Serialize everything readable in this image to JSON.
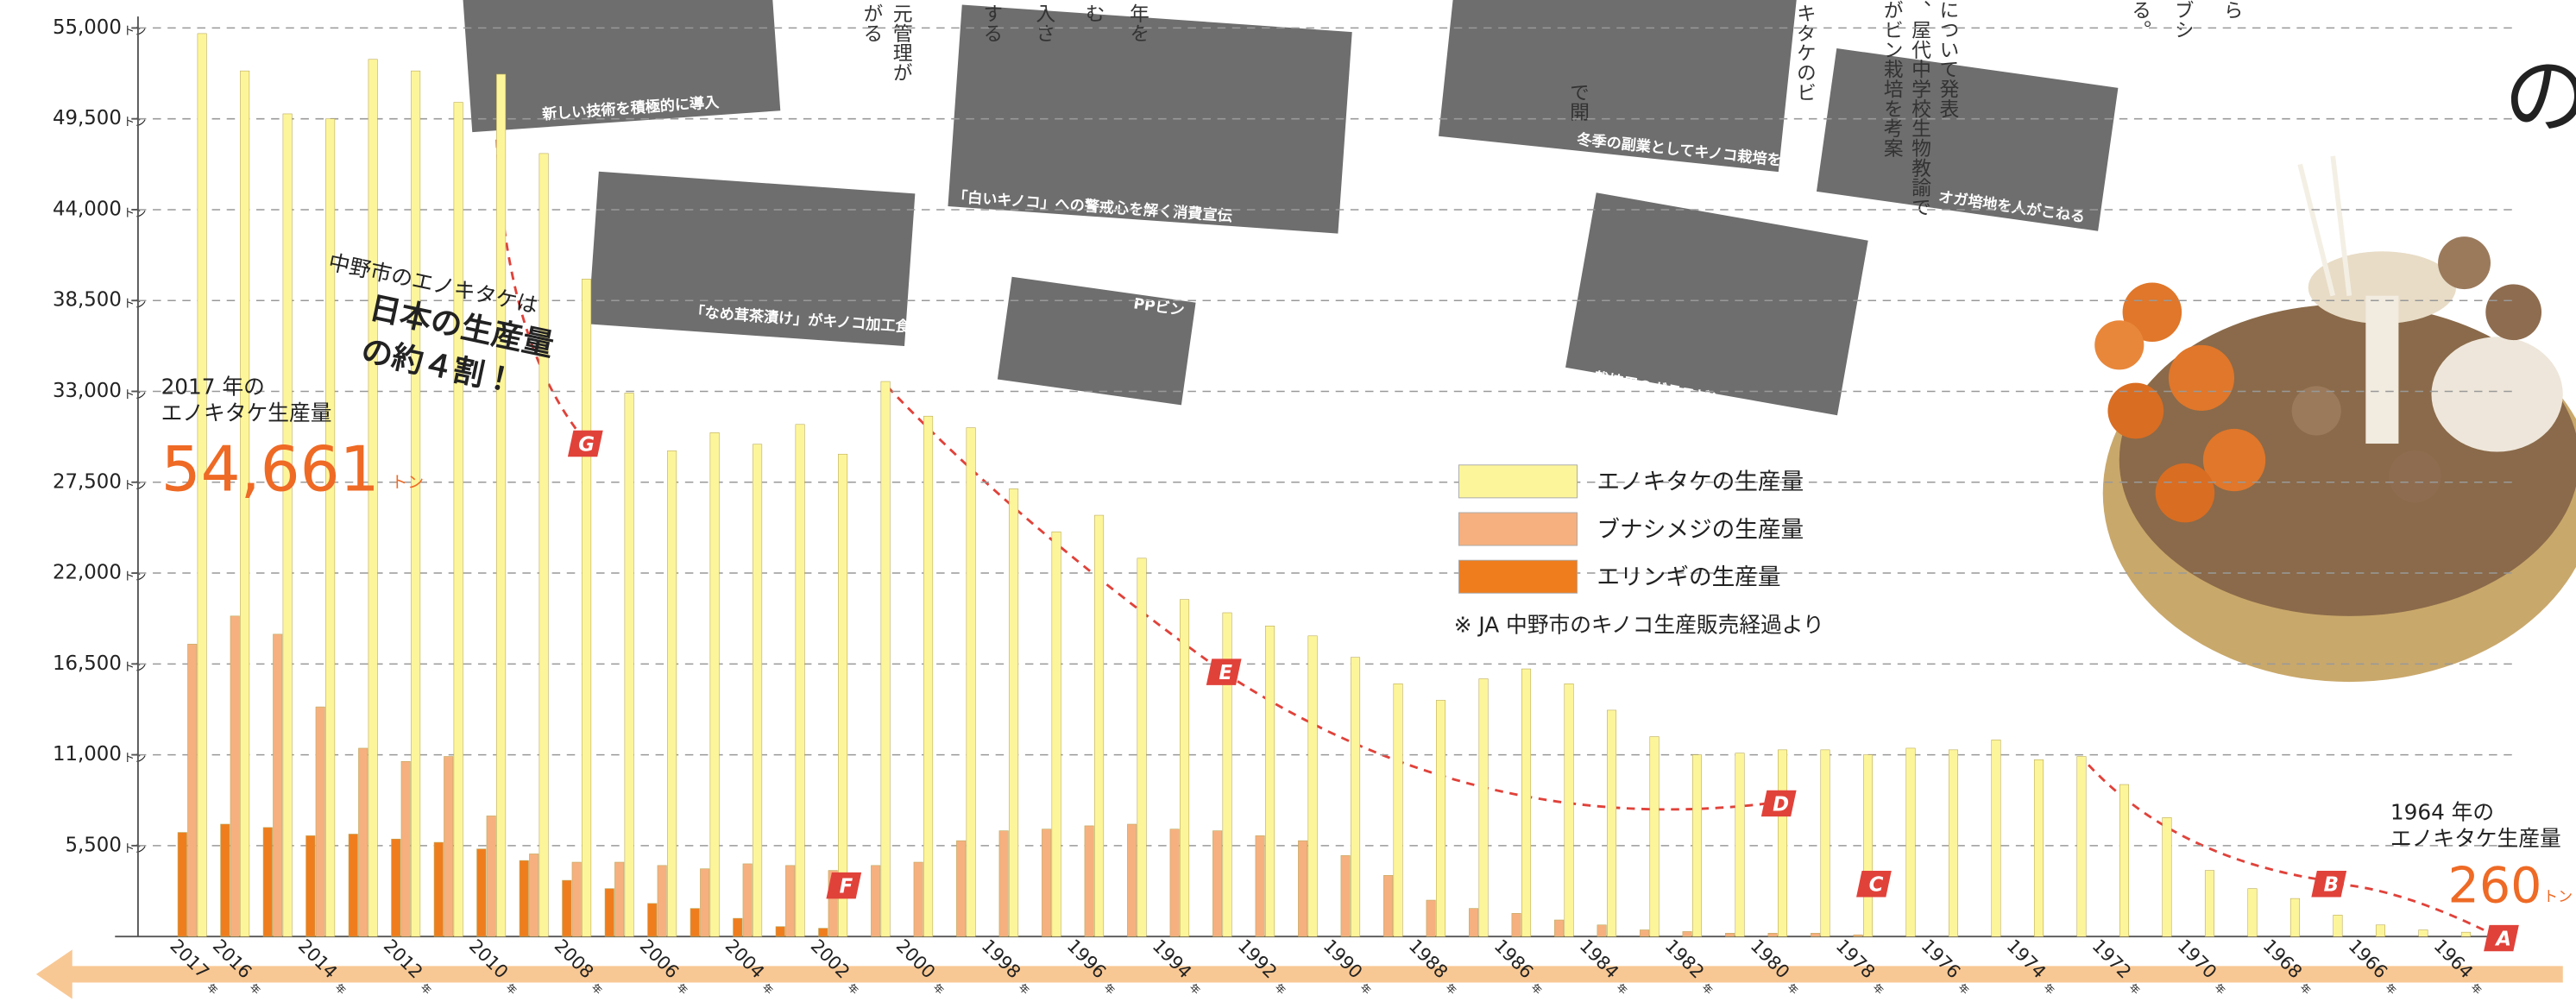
{
  "chart_data": {
    "type": "bar",
    "categories": [
      "2017",
      "2016",
      null,
      "2014",
      null,
      "2012",
      null,
      "2010",
      null,
      "2008",
      null,
      "2006",
      null,
      "2004",
      null,
      "2002",
      null,
      "2000",
      null,
      "1998",
      null,
      "1996",
      null,
      "1994",
      null,
      "1992",
      null,
      "1990",
      null,
      "1988",
      null,
      "1986",
      null,
      "1984",
      null,
      "1982",
      null,
      "1980",
      null,
      "1978",
      null,
      "1976",
      null,
      "1974",
      null,
      "1972",
      null,
      "1970",
      null,
      "1968",
      null,
      "1966",
      null,
      "1964"
    ],
    "x_suffix": "年",
    "y_unit": "トン",
    "series": [
      {
        "name": "エリンギの生産量",
        "color": "#ef7d1e",
        "values": [
          6300,
          6800,
          6600,
          6100,
          6200,
          5900,
          5700,
          5300,
          4600,
          3400,
          2900,
          2000,
          1700,
          1100,
          600,
          500,
          0,
          0,
          0,
          0,
          0,
          0,
          0,
          0,
          0,
          0,
          0,
          0,
          0,
          0,
          0,
          0,
          0,
          0,
          0,
          0,
          0,
          0,
          0,
          0,
          0,
          0,
          0,
          0,
          0,
          0,
          0,
          0,
          0,
          0,
          0,
          0,
          0,
          0
        ]
      },
      {
        "name": "ブナシメジの生産量",
        "color": "#f6b07f",
        "values": [
          17700,
          19400,
          18300,
          13900,
          11400,
          10600,
          10900,
          7300,
          5000,
          4500,
          4500,
          4300,
          4100,
          4400,
          4300,
          4000,
          4300,
          4500,
          5800,
          6400,
          6500,
          6700,
          6800,
          6500,
          6400,
          6100,
          5800,
          4900,
          3700,
          2200,
          1700,
          1400,
          1000,
          700,
          400,
          300,
          200,
          200,
          200,
          100,
          0,
          0,
          0,
          0,
          0,
          0,
          0,
          0,
          0,
          0,
          0,
          0,
          0,
          0
        ]
      },
      {
        "name": "エノキタケの生産量",
        "color": "#fdf59a",
        "values": [
          54661,
          52400,
          49800,
          49500,
          53100,
          52400,
          50500,
          52200,
          47400,
          39800,
          32900,
          29400,
          30500,
          29800,
          31000,
          29200,
          33600,
          31500,
          30800,
          27100,
          24500,
          25500,
          22900,
          20400,
          19600,
          18800,
          18200,
          16900,
          15300,
          14300,
          15600,
          16200,
          15300,
          13700,
          12100,
          11000,
          11100,
          11300,
          11300,
          11000,
          11400,
          11300,
          11900,
          10700,
          10900,
          9200,
          7200,
          4000,
          2900,
          2300,
          1300,
          700,
          400,
          260
        ]
      }
    ],
    "ylim": [
      0,
      55000
    ],
    "yticks": [
      {
        "value": 5500,
        "label": "5,500"
      },
      {
        "value": 11000,
        "label": "11,000"
      },
      {
        "value": 16500,
        "label": "16,500"
      },
      {
        "value": 22000,
        "label": "22,000"
      },
      {
        "value": 27500,
        "label": "27,500"
      },
      {
        "value": 33000,
        "label": "33,000"
      },
      {
        "value": 38500,
        "label": "38,500"
      },
      {
        "value": 44000,
        "label": "44,000"
      },
      {
        "value": 49500,
        "label": "49,500"
      },
      {
        "value": 55000,
        "label": "55,000"
      }
    ],
    "grid": true,
    "legend": "center",
    "source": "※ JA 中野市のキノコ生産販売経過より",
    "annotations": {
      "y2017": {
        "line1": "2017 年の",
        "line2": "エノキタケ生産量",
        "value_label": "54,661"
      },
      "y1964": {
        "line1": "1964 年の",
        "line2": "エノキタケ生産量",
        "value_label": "260"
      },
      "share": {
        "line1": "中野市のエノキタケは",
        "line2": "日本の生産量",
        "line3": "の約４割！"
      }
    },
    "markers": [
      "A",
      "B",
      "C",
      "D",
      "E",
      "F",
      "G"
    ],
    "photos": [
      "新しい技術を積極的に導入",
      "「白いキノコ」への警戒心を解く消費宣伝",
      "「なめ茸茶漬け」がキノコ加工食品の元祖",
      "PPビン",
      "冬季の副業としてキノコ栽培をしていた",
      "栽培用のガラスビン",
      "オガ培地を人がこねる"
    ],
    "fragments": [
      "元管理が",
      "がる",
      "する",
      "入さ",
      "む",
      "年を",
      "で開",
      "キタケのビ",
      "、屋代中学校生物教諭で",
      "がビン栽培を考案",
      "について発表",
      "る。",
      "ブシ",
      "ら",
      "の"
    ]
  }
}
